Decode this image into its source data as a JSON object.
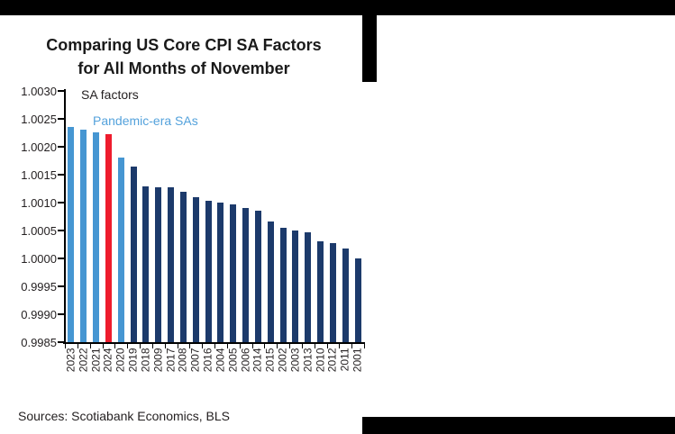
{
  "header": {
    "title_line1": "Comparing US Core CPI SA Factors",
    "title_line2": "for All Months of November"
  },
  "legend": {
    "sa_factors_label": "SA factors",
    "pandemic_label": "Pandemic-era SAs"
  },
  "footer": {
    "sources_text": "Sources: Scotiabank Economics, BLS"
  },
  "colors": {
    "navy": "#1c3a6b",
    "lightblue": "#4696d2",
    "red": "#ee1c2d",
    "legend_blue_text": "#54a2dc",
    "text_black": "#231f20",
    "band_black": "#000000"
  },
  "chart_data": {
    "type": "bar",
    "title": "Comparing US Core CPI SA Factors for All Months of November",
    "xlabel": "",
    "ylabel": "SA factors",
    "categories": [
      "2023",
      "2022",
      "2021",
      "2024",
      "2020",
      "2019",
      "2018",
      "2009",
      "2017",
      "2008",
      "2007",
      "2016",
      "2004",
      "2005",
      "2006",
      "2014",
      "2015",
      "2002",
      "2003",
      "2013",
      "2010",
      "2012",
      "2011",
      "2001"
    ],
    "values": [
      1.00235,
      1.0023,
      1.00226,
      1.00222,
      1.00181,
      1.00164,
      1.00129,
      1.00128,
      1.00127,
      1.00119,
      1.0011,
      1.00104,
      1.001,
      1.00096,
      1.00091,
      1.00085,
      1.00066,
      1.00055,
      1.0005,
      1.00047,
      1.00031,
      1.00027,
      1.00017,
      1.0
    ],
    "bar_color_keys": [
      "lightblue",
      "lightblue",
      "lightblue",
      "red",
      "lightblue",
      "navy",
      "navy",
      "navy",
      "navy",
      "navy",
      "navy",
      "navy",
      "navy",
      "navy",
      "navy",
      "navy",
      "navy",
      "navy",
      "navy",
      "navy",
      "navy",
      "navy",
      "navy",
      "navy"
    ],
    "ylim": [
      0.9985,
      1.003
    ],
    "ytick_step": 0.0005,
    "ytick_labels": [
      "1.0030",
      "1.0025",
      "1.0020",
      "1.0015",
      "1.0010",
      "1.0005",
      "1.0000",
      "0.9995",
      "0.9990",
      "0.9985"
    ],
    "legend_entries": [
      "SA factors",
      "Pandemic-era SAs"
    ],
    "legend_position": "top-left-inside",
    "grid": "off",
    "sorted": "descending by value"
  }
}
